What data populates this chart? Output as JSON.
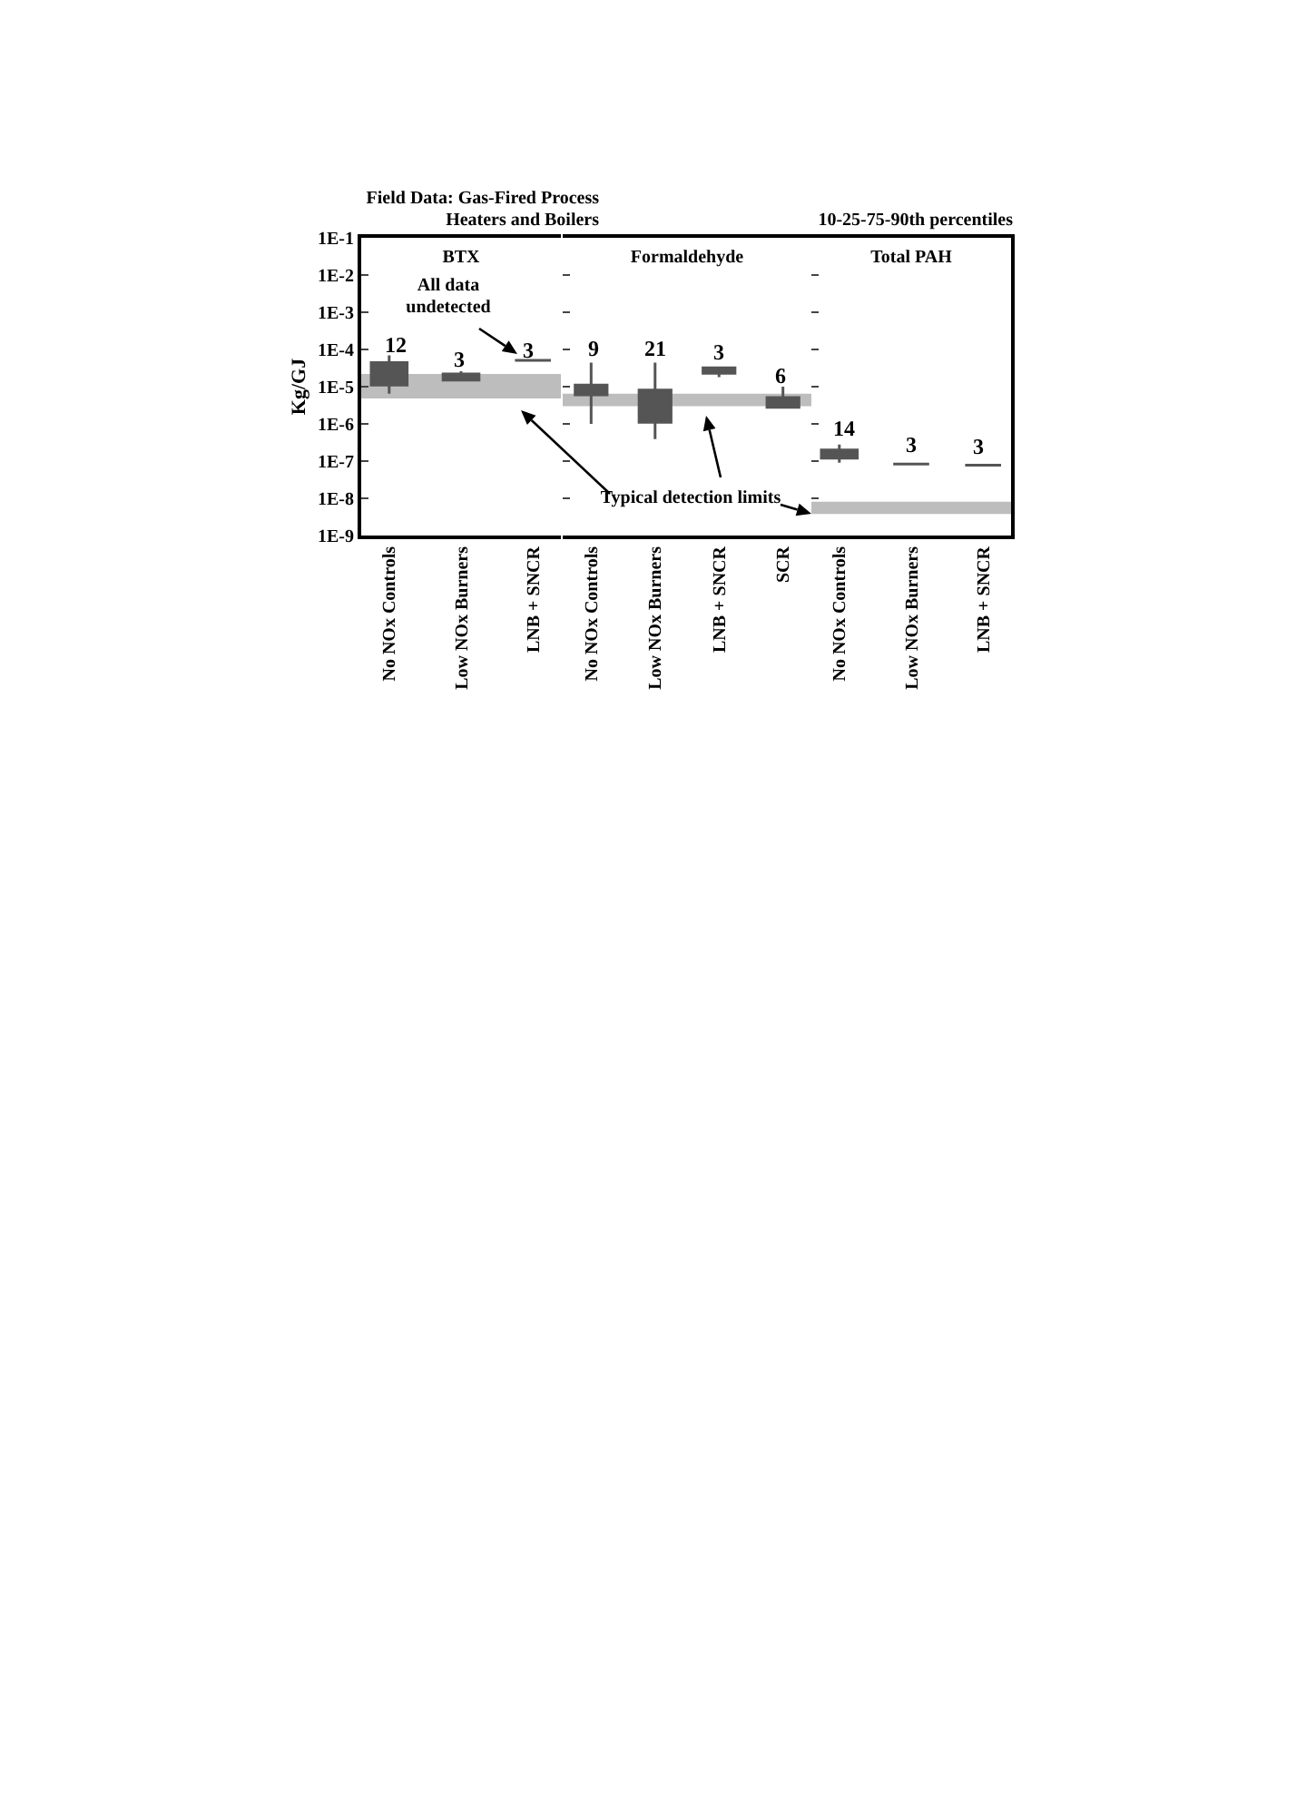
{
  "chart_data": [
    {
      "type": "box",
      "title": "BTX",
      "ylabel": "Kg/GJ",
      "log": true,
      "grid": false,
      "categories": [
        "No NOx Controls",
        "Low NOx Burners",
        "LNB + SNCR"
      ],
      "series": [
        {
          "color": "#555555",
          "boxes": [
            {
              "low": 6.5e-06,
              "q1": 1.1e-05,
              "median": 2e-05,
              "q3": 4.4e-05,
              "high": 6.9e-05
            },
            {
              "low": 1.5e-05,
              "q1": 1.5e-05,
              "median": 1.8e-05,
              "q3": 2.2e-05,
              "high": 2.6e-05
            },
            {
              "low": 5.1e-05,
              "q1": 5.1e-05,
              "median": 5.1e-05,
              "q3": 5.1e-05,
              "high": 5.1e-05
            }
          ]
        }
      ],
      "ylim": [
        1e-09,
        0.1
      ],
      "yticks": [
        {
          "value": 1e-09,
          "label": "1E-9"
        },
        {
          "value": 1e-08,
          "label": "1E-8"
        },
        {
          "value": 1e-07,
          "label": "1E-7"
        },
        {
          "value": 1e-06,
          "label": "1E-6"
        },
        {
          "value": 1e-05,
          "label": "1E-5"
        },
        {
          "value": 0.0001,
          "label": "1E-4"
        },
        {
          "value": 0.001,
          "label": "1E-3"
        },
        {
          "value": 0.01,
          "label": "1E-2"
        },
        {
          "value": 0.1,
          "label": "1E-1"
        }
      ],
      "bands": [
        {
          "axis": "y",
          "from": 4.8e-06,
          "to": 2.2e-05,
          "color": "#bdbdbd"
        }
      ],
      "annotations": [
        "Field Data: Gas-Fired Process Heaters and Boilers",
        "All data undetected",
        "12",
        "3",
        "3"
      ]
    },
    {
      "type": "box",
      "title": "Formaldehyde",
      "log": true,
      "grid": false,
      "tick_labels": "x",
      "categories": [
        "No NOx Controls",
        "Low NOx Burners",
        "LNB + SNCR",
        "SCR"
      ],
      "series": [
        {
          "color": "#555555",
          "boxes": [
            {
              "low": 1e-06,
              "q1": 6e-06,
              "median": 9e-06,
              "q3": 1.1e-05,
              "high": 4.4e-05
            },
            {
              "low": 3.9e-07,
              "q1": 1.1e-06,
              "median": 3e-06,
              "q3": 8.1e-06,
              "high": 4.4e-05
            },
            {
              "low": 1.8e-05,
              "q1": 2.3e-05,
              "median": 2.8e-05,
              "q3": 3.2e-05,
              "high": 3.2e-05
            },
            {
              "low": 2.8e-06,
              "q1": 2.8e-06,
              "median": 4e-06,
              "q3": 5.1e-06,
              "high": 1e-05
            }
          ]
        }
      ],
      "ylim": [
        1e-09,
        0.1
      ],
      "yticks": [
        {
          "value": 1e-09,
          "label": null
        },
        {
          "value": 1e-08,
          "label": null
        },
        {
          "value": 1e-07,
          "label": null
        },
        {
          "value": 1e-06,
          "label": null
        },
        {
          "value": 1e-05,
          "label": null
        },
        {
          "value": 0.0001,
          "label": null
        },
        {
          "value": 0.001,
          "label": null
        },
        {
          "value": 0.01,
          "label": null
        },
        {
          "value": 0.1,
          "label": null
        }
      ],
      "bands": [
        {
          "axis": "y",
          "from": 3e-06,
          "to": 6.5e-06,
          "color": "#bdbdbd"
        }
      ],
      "annotations": [
        "Typical detection limits",
        "9",
        "21",
        "3",
        "6"
      ]
    },
    {
      "type": "box",
      "title": "Total PAH",
      "log": true,
      "grid": false,
      "tick_labels": "x",
      "categories": [
        "No NOx Controls",
        "Low NOx Burners",
        "LNB + SNCR"
      ],
      "series": [
        {
          "color": "#555555",
          "boxes": [
            {
              "low": 9.1e-08,
              "q1": 1.2e-07,
              "median": 1.6e-07,
              "q3": 2e-07,
              "high": 2.8e-07
            },
            {
              "low": 8.3e-08,
              "q1": 8.3e-08,
              "median": 8.3e-08,
              "q3": 8.3e-08,
              "high": 8.3e-08
            },
            {
              "low": 7.8e-08,
              "q1": 7.8e-08,
              "median": 7.8e-08,
              "q3": 7.8e-08,
              "high": 7.8e-08
            }
          ]
        }
      ],
      "ylim": [
        1e-09,
        0.1
      ],
      "yticks": [
        {
          "value": 1e-09,
          "label": null
        },
        {
          "value": 1e-08,
          "label": null
        },
        {
          "value": 1e-07,
          "label": null
        },
        {
          "value": 1e-06,
          "label": null
        },
        {
          "value": 1e-05,
          "label": null
        },
        {
          "value": 0.0001,
          "label": null
        },
        {
          "value": 0.001,
          "label": null
        },
        {
          "value": 0.01,
          "label": null
        },
        {
          "value": 0.1,
          "label": null
        }
      ],
      "bands": [
        {
          "axis": "y",
          "from": 3.8e-09,
          "to": 8.1e-09,
          "color": "#bdbdbd"
        }
      ],
      "annotations": [
        "10-25-75-90th percentiles",
        "14",
        "3",
        "3"
      ]
    }
  ]
}
